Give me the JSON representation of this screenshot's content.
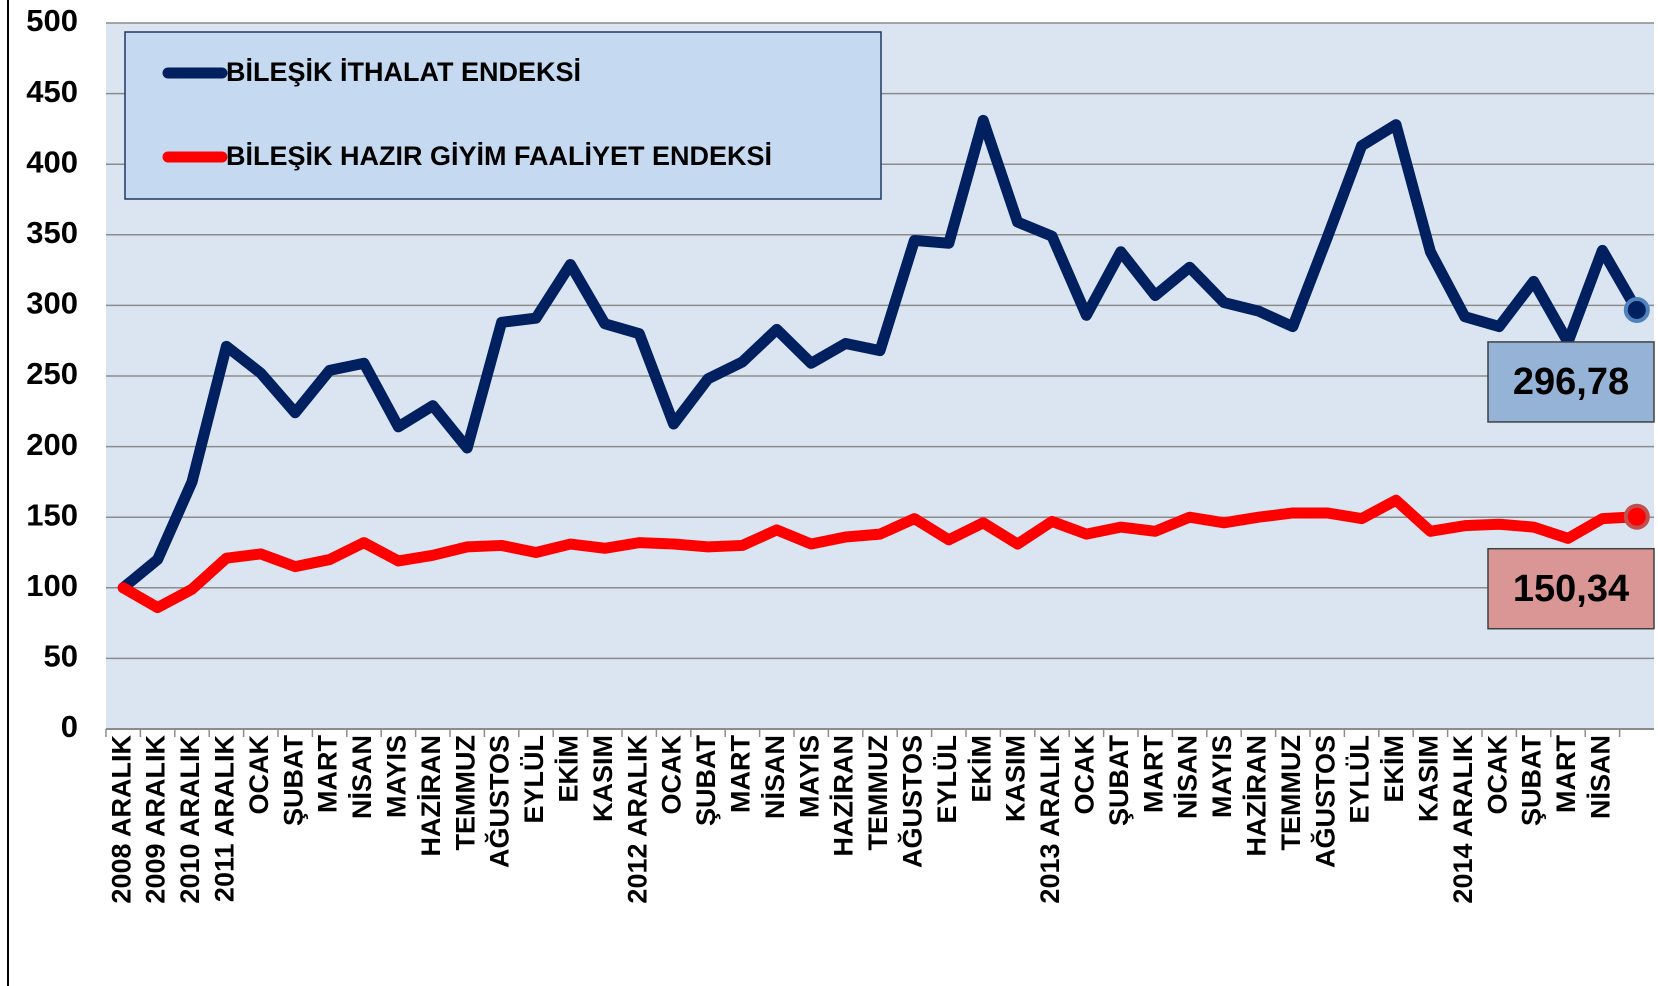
{
  "chart_data": {
    "type": "line",
    "categories": [
      "2008 ARALIK",
      "2009 ARALIK",
      "2010 ARALIK",
      "2011 ARALIK",
      "OCAK",
      "ŞUBAT",
      "MART",
      "NİSAN",
      "MAYIS",
      "HAZİRAN",
      "TEMMUZ",
      "AĞUSTOS",
      "EYLÜL",
      "EKİM",
      "KASIM",
      "2012 ARALIK",
      "OCAK",
      "ŞUBAT",
      "MART",
      "NİSAN",
      "MAYIS",
      "HAZİRAN",
      "TEMMUZ",
      "AĞUSTOS",
      "EYLÜL",
      "EKİM",
      "KASIM",
      "2013 ARALIK",
      "OCAK",
      "ŞUBAT",
      "MART",
      "NİSAN",
      "MAYIS",
      "HAZİRAN",
      "TEMMUZ",
      "AĞUSTOS",
      "EYLÜL",
      "EKİM",
      "KASIM",
      "2014 ARALIK",
      "OCAK",
      "ŞUBAT",
      "MART",
      "NİSAN",
      null
    ],
    "series": [
      {
        "name": "BİLEŞİK İTHALAT ENDEKSİ",
        "color": "#002060",
        "values": [
          100,
          120,
          175,
          271,
          252,
          224,
          254,
          259,
          214,
          229,
          199,
          288,
          291,
          329,
          287,
          280,
          216,
          248,
          260,
          283,
          259,
          273,
          268,
          346,
          344,
          431,
          359,
          349,
          293,
          338,
          307,
          327,
          302,
          296,
          285,
          348,
          413,
          428,
          338,
          292,
          285,
          317,
          274,
          339,
          296.78
        ],
        "value_labels": [
          null,
          null,
          null,
          null,
          null,
          null,
          null,
          null,
          null,
          null,
          null,
          null,
          null,
          null,
          null,
          null,
          null,
          null,
          null,
          null,
          null,
          null,
          null,
          null,
          null,
          null,
          null,
          null,
          null,
          null,
          null,
          null,
          null,
          null,
          null,
          null,
          null,
          null,
          null,
          null,
          null,
          null,
          null,
          null,
          "296,78"
        ]
      },
      {
        "name": "BİLEŞİK HAZIR GİYİM FAALİYET ENDEKSİ",
        "color": "#ff0000",
        "values": [
          100,
          86,
          99,
          121,
          124,
          115,
          120,
          132,
          119,
          123,
          129,
          130,
          125,
          131,
          128,
          132,
          131,
          129,
          130,
          141,
          131,
          136,
          138,
          149,
          134,
          146,
          131,
          147,
          138,
          143,
          140,
          150,
          146,
          150,
          153,
          153,
          149,
          162,
          140,
          144,
          145,
          143,
          135,
          149,
          150.34
        ],
        "value_labels": [
          null,
          null,
          null,
          null,
          null,
          null,
          null,
          null,
          null,
          null,
          null,
          null,
          null,
          null,
          null,
          null,
          null,
          null,
          null,
          null,
          null,
          null,
          null,
          null,
          null,
          null,
          null,
          null,
          null,
          null,
          null,
          null,
          null,
          null,
          null,
          null,
          null,
          null,
          null,
          null,
          null,
          null,
          null,
          null,
          "150,34"
        ]
      }
    ],
    "ylim": [
      0,
      500
    ],
    "yticks": [
      0,
      50,
      100,
      150,
      200,
      250,
      300,
      350,
      400,
      450,
      500
    ],
    "grid": true,
    "legend": "top-left"
  }
}
